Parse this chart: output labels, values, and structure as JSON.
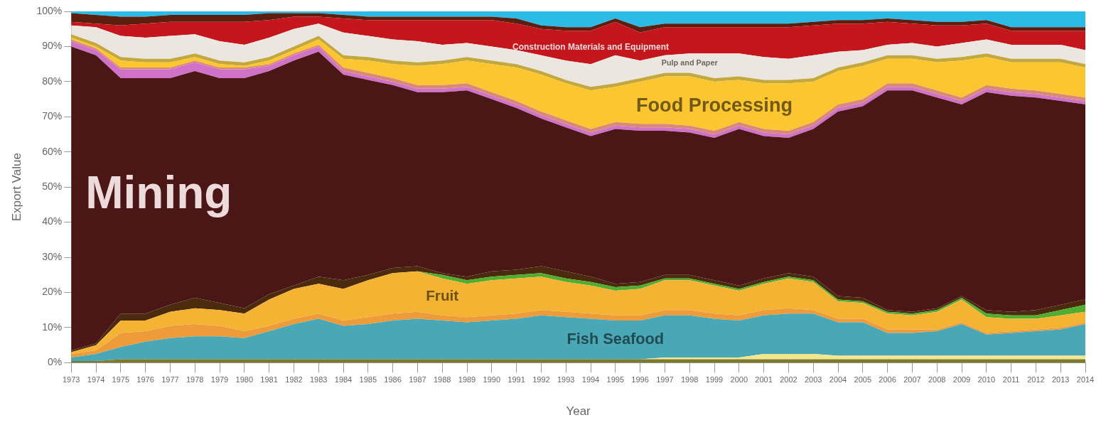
{
  "chart_data": {
    "type": "area",
    "stacked": true,
    "xlabel": "Year",
    "ylabel": "Export Value",
    "legend": false,
    "grid": false,
    "categories": [
      "1973",
      "1974",
      "1975",
      "1976",
      "1977",
      "1978",
      "1979",
      "1980",
      "1981",
      "1982",
      "1983",
      "1984",
      "1985",
      "1986",
      "1987",
      "1988",
      "1989",
      "1990",
      "1991",
      "1992",
      "1993",
      "1994",
      "1995",
      "1996",
      "1997",
      "1998",
      "1999",
      "2000",
      "2001",
      "2002",
      "2003",
      "2004",
      "2005",
      "2006",
      "2007",
      "2008",
      "2009",
      "2010",
      "2011",
      "2012",
      "2013",
      "2014"
    ],
    "ylim": [
      0,
      100
    ],
    "yticks": [
      {
        "value": 0,
        "label": "0%"
      },
      {
        "value": 10,
        "label": "10%"
      },
      {
        "value": 20,
        "label": "20%"
      },
      {
        "value": 30,
        "label": "30%"
      },
      {
        "value": 40,
        "label": "40%"
      },
      {
        "value": 50,
        "label": "50%"
      },
      {
        "value": 60,
        "label": "60%"
      },
      {
        "value": 70,
        "label": "70%"
      },
      {
        "value": 80,
        "label": "80%"
      },
      {
        "value": 90,
        "label": "90%"
      },
      {
        "value": 100,
        "label": "100%"
      }
    ],
    "series": [
      {
        "color": "#7d7a2e",
        "values": [
          0.5,
          0.5,
          1,
          1,
          1,
          1,
          1,
          1,
          1,
          1,
          1,
          1,
          1,
          1,
          1,
          1,
          1,
          1,
          1,
          1,
          1,
          1,
          1,
          1,
          1,
          1,
          1,
          1,
          1,
          1,
          1,
          1,
          1,
          1,
          1,
          1,
          1,
          1,
          1,
          1,
          1,
          1
        ]
      },
      {
        "color": "#f3e88e",
        "values": [
          0,
          0,
          0,
          0,
          0,
          0,
          0,
          0,
          0,
          0,
          0,
          0,
          0,
          0,
          0,
          0,
          0,
          0,
          0,
          0,
          0,
          0,
          0,
          0,
          0.5,
          0.5,
          0.5,
          0.5,
          1.5,
          1.5,
          1.5,
          1,
          1,
          1,
          1,
          1,
          1,
          1,
          1,
          1,
          1,
          1
        ]
      },
      {
        "name": "Fish Seafood",
        "color": "#4aa7b5",
        "values": [
          1,
          2,
          3.5,
          5,
          6,
          6.5,
          6.5,
          6,
          8,
          10,
          11.5,
          9.5,
          10,
          11,
          11.5,
          11,
          10.5,
          11,
          11.5,
          12.5,
          12,
          11.5,
          11,
          11,
          12,
          12,
          11,
          10.5,
          11,
          11.5,
          11.5,
          9.5,
          9.5,
          6.5,
          6.5,
          7,
          9,
          6,
          6.5,
          7,
          7.5,
          9
        ]
      },
      {
        "color": "#ee9b3a",
        "values": [
          1,
          1,
          4,
          3,
          3.5,
          3.5,
          3,
          2,
          1.5,
          1.5,
          1.5,
          1.5,
          2,
          2,
          2,
          1.5,
          1.5,
          1.5,
          1.5,
          1.5,
          1.5,
          1.5,
          1.5,
          1.5,
          1.5,
          1.5,
          1.5,
          1.5,
          1.5,
          1.5,
          1,
          1,
          1,
          1,
          1,
          0.5,
          0.5,
          0.5,
          0.5,
          0.5,
          0.5,
          0.5
        ]
      },
      {
        "name": "Fruit",
        "color": "#f5b334",
        "values": [
          0.5,
          1.5,
          3.5,
          3,
          4,
          4.5,
          4.5,
          5,
          7.5,
          8.5,
          8.5,
          9,
          10.5,
          11.5,
          11.5,
          10.5,
          9.5,
          10,
          10,
          9.5,
          8.5,
          8,
          7,
          7.5,
          8.5,
          8.5,
          8,
          7,
          7.5,
          8.5,
          8,
          5,
          4.5,
          4.5,
          4,
          5,
          6.5,
          4.5,
          3.5,
          3,
          3.5,
          3
        ]
      },
      {
        "color": "#4fae2f",
        "values": [
          0,
          0,
          0,
          0,
          0,
          0,
          0,
          0,
          0,
          0,
          0,
          0,
          0,
          0,
          0,
          1,
          1,
          1,
          1,
          1,
          1,
          1,
          1,
          1,
          0.5,
          0.5,
          0.5,
          0.5,
          0.5,
          0.5,
          0.5,
          0.5,
          0.5,
          0.5,
          0.5,
          0.5,
          0.5,
          1,
          1,
          1,
          1.5,
          2
        ]
      },
      {
        "color": "#4b2a0e",
        "values": [
          0.5,
          0.5,
          2,
          2,
          2,
          3,
          2,
          1.5,
          1.5,
          1,
          2,
          2.5,
          1.5,
          1.5,
          1.5,
          0.5,
          1,
          1.5,
          1.5,
          2,
          2,
          1.5,
          1,
          1,
          1,
          1,
          1,
          1,
          1,
          1,
          1,
          1,
          1,
          0.5,
          0.5,
          0.5,
          0.5,
          1,
          1,
          1.5,
          1.5,
          1.5
        ]
      },
      {
        "name": "Mining",
        "color": "#4a1616",
        "values": [
          86.5,
          82,
          67,
          67,
          64.5,
          64.5,
          64,
          65.5,
          63.5,
          64,
          64,
          58.5,
          55.5,
          52,
          49.5,
          51.5,
          53,
          49,
          46,
          42,
          41,
          40,
          44,
          43,
          41,
          40.5,
          40.5,
          44.5,
          40.5,
          38.5,
          42,
          52.5,
          54.5,
          62.5,
          63,
          60,
          54.5,
          62,
          61.5,
          60.5,
          58,
          55.5
        ]
      },
      {
        "color": "#d073c8",
        "values": [
          1.5,
          1.5,
          2.5,
          2.5,
          2.5,
          2.5,
          2.5,
          2.5,
          1.5,
          1.5,
          1.5,
          1,
          1,
          1,
          1,
          1,
          1,
          1,
          1,
          1,
          1,
          1,
          1,
          1,
          1,
          1,
          1,
          1,
          1,
          1,
          1,
          1,
          1,
          1,
          1,
          1,
          1,
          1,
          1,
          1,
          1,
          1
        ]
      },
      {
        "color": "#d98a75",
        "values": [
          0.5,
          0.5,
          0.5,
          0.5,
          0.5,
          0.5,
          0.5,
          0.5,
          0.5,
          0.5,
          0.5,
          1,
          1,
          1,
          1,
          1,
          1,
          1,
          1,
          1,
          1,
          1,
          1,
          1,
          1,
          1,
          1,
          1,
          1,
          1,
          1,
          1,
          1,
          1,
          1,
          1,
          1,
          1,
          1,
          1,
          1,
          1
        ]
      },
      {
        "name": "Food Processing",
        "color": "#fcc631",
        "values": [
          0.5,
          0.5,
          2,
          1.5,
          1.5,
          1,
          1,
          0.5,
          1,
          1,
          1.5,
          2.5,
          3.5,
          4,
          5.5,
          6,
          6.5,
          8,
          9.5,
          10.5,
          10.5,
          11,
          10,
          12,
          13.5,
          14,
          14,
          12,
          13,
          13.5,
          11.5,
          9.5,
          9.5,
          7,
          7,
          8,
          10.5,
          8,
          7.5,
          8,
          9,
          8.5
        ]
      },
      {
        "color": "#c3a83e",
        "values": [
          1,
          1,
          1,
          1,
          1,
          1,
          1,
          1,
          1,
          1,
          1,
          1,
          1,
          1,
          1,
          1,
          1,
          1,
          1,
          1,
          1,
          1,
          1,
          1,
          1,
          1,
          1,
          1,
          1,
          1,
          1,
          1,
          1,
          1,
          1,
          1,
          1,
          1,
          1,
          1,
          1,
          1
        ]
      },
      {
        "name": "Pulp and Paper",
        "color": "#ebe6df",
        "values": [
          2.5,
          4.5,
          6,
          6,
          6.5,
          5.5,
          5.5,
          5,
          5.5,
          5,
          3.5,
          6.5,
          6,
          6,
          6,
          4.5,
          4,
          4,
          4,
          4.5,
          5.5,
          6.5,
          8,
          5,
          5,
          5.5,
          7,
          6.5,
          6.5,
          6,
          6.5,
          4.5,
          3.5,
          3,
          3.5,
          3.5,
          4,
          4,
          4,
          4,
          4,
          4
        ]
      },
      {
        "name": "Construction Materials and Equipment",
        "color": "#c4161c",
        "values": [
          1,
          1,
          3,
          4,
          4,
          3.5,
          5.5,
          6.5,
          5,
          3.5,
          2,
          4,
          4.5,
          5.5,
          6,
          7,
          6.5,
          7.5,
          7.5,
          7.5,
          8.5,
          9.5,
          9.5,
          8,
          8,
          7.5,
          7.5,
          7.5,
          8.5,
          9,
          8.5,
          8,
          7.5,
          6.5,
          5.5,
          6,
          5,
          4.5,
          4,
          4,
          4,
          5.5
        ]
      },
      {
        "color": "#5c1e0f",
        "values": [
          2.5,
          2.5,
          2.5,
          2,
          2,
          2,
          2,
          2,
          2,
          1,
          1,
          1,
          1,
          1,
          1,
          1,
          1,
          1,
          1.5,
          1,
          1,
          1,
          1,
          1.5,
          1,
          1,
          1,
          1,
          1,
          1,
          1,
          1,
          1,
          1,
          1,
          1,
          1,
          1,
          1,
          1,
          1,
          1
        ]
      },
      {
        "color": "#2bbbe6",
        "values": [
          0.5,
          1,
          1.5,
          1.5,
          1,
          1,
          1,
          1,
          0.5,
          0.5,
          0.5,
          1,
          1.5,
          1.5,
          1.5,
          1.5,
          1.5,
          1.5,
          2,
          4,
          4.5,
          4.5,
          2,
          4.5,
          3.5,
          3.5,
          3.5,
          3.5,
          3.5,
          3.5,
          3,
          2.5,
          2.5,
          2,
          2.5,
          3,
          3,
          2.5,
          4.5,
          4.5,
          4.5,
          4.5
        ]
      }
    ]
  }
}
